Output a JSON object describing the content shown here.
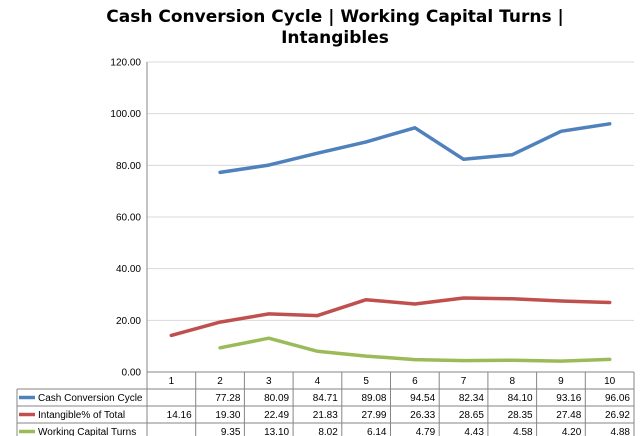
{
  "chart_data": {
    "type": "line",
    "title": "Cash Conversion Cycle | Working Capital Turns | Intangibles",
    "xlabel": "",
    "ylabel": "",
    "ylim": [
      0,
      120
    ],
    "yticks": [
      "0.00",
      "20.00",
      "40.00",
      "60.00",
      "80.00",
      "100.00",
      "120.00"
    ],
    "grid": true,
    "legend": "data-table",
    "categories": [
      "1",
      "2",
      "3",
      "4",
      "5",
      "6",
      "7",
      "8",
      "9",
      "10"
    ],
    "series": [
      {
        "name": "Cash Conversion Cycle",
        "color": "#4f81bd",
        "values": [
          null,
          77.28,
          80.09,
          84.71,
          89.08,
          94.54,
          82.34,
          84.1,
          93.16,
          96.06
        ],
        "labels": [
          "",
          "77.28",
          "80.09",
          "84.71",
          "89.08",
          "94.54",
          "82.34",
          "84.10",
          "93.16",
          "96.06"
        ]
      },
      {
        "name": "Intangible% of Total",
        "color": "#c0504d",
        "values": [
          14.16,
          19.3,
          22.49,
          21.83,
          27.99,
          26.33,
          28.65,
          28.35,
          27.48,
          26.92
        ],
        "labels": [
          "14.16",
          "19.30",
          "22.49",
          "21.83",
          "27.99",
          "26.33",
          "28.65",
          "28.35",
          "27.48",
          "26.92"
        ]
      },
      {
        "name": "Working Capital Turns",
        "color": "#9bbb59",
        "values": [
          null,
          9.35,
          13.1,
          8.02,
          6.14,
          4.79,
          4.43,
          4.58,
          4.2,
          4.88
        ],
        "labels": [
          "",
          "9.35",
          "13.10",
          "8.02",
          "6.14",
          "4.79",
          "4.43",
          "4.58",
          "4.20",
          "4.88"
        ]
      }
    ]
  }
}
